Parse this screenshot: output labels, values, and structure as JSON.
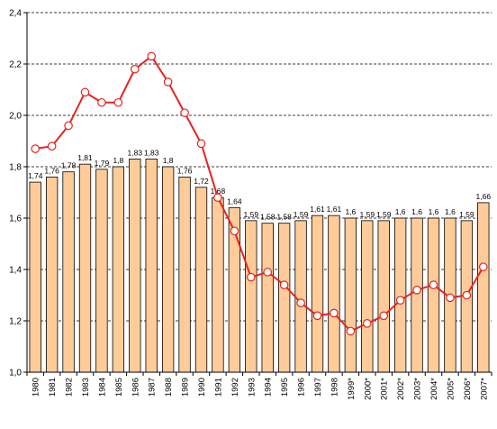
{
  "chart_data": {
    "type": "bar",
    "categories": [
      "1980",
      "1981",
      "1982",
      "1983",
      "1984",
      "1985",
      "1986",
      "1987",
      "1988",
      "1989",
      "1990",
      "1991",
      "1992",
      "1993",
      "1994",
      "1995",
      "1996",
      "1997",
      "1998",
      "1999*",
      "2000*",
      "2001*",
      "2002*",
      "2003*",
      "2004*",
      "2005*",
      "2006*",
      "2007*"
    ],
    "bar_values": [
      1.74,
      1.76,
      1.78,
      1.81,
      1.79,
      1.8,
      1.83,
      1.83,
      1.8,
      1.76,
      1.72,
      1.68,
      1.64,
      1.59,
      1.58,
      1.58,
      1.59,
      1.61,
      1.61,
      1.6,
      1.59,
      1.59,
      1.6,
      1.6,
      1.6,
      1.6,
      1.59,
      1.66
    ],
    "bar_labels": [
      "1,74",
      "1,76",
      "1,78",
      "1,81",
      "1,79",
      "1,8",
      "1,83",
      "1,83",
      "1,8",
      "1,76",
      "1,72",
      "1,68",
      "1,64",
      "1,59",
      "1,58",
      "1,58",
      "1,59",
      "1,61",
      "1,61",
      "1,6",
      "1,59",
      "1,59",
      "1,6",
      "1,6",
      "1,6",
      "1,6",
      "1,59",
      "1,66"
    ],
    "line_values": [
      1.87,
      1.88,
      1.96,
      2.09,
      2.05,
      2.05,
      2.18,
      2.23,
      2.13,
      2.01,
      1.89,
      1.68,
      1.55,
      1.37,
      1.39,
      1.34,
      1.27,
      1.22,
      1.23,
      1.16,
      1.19,
      1.22,
      1.28,
      1.32,
      1.34,
      1.29,
      1.3,
      1.41
    ],
    "ylim": [
      1.0,
      2.4
    ],
    "yticks": [
      "1,0",
      "1,2",
      "1,4",
      "1,6",
      "1,8",
      "2,0",
      "2,2",
      "2,4"
    ],
    "ytick_values": [
      1.0,
      1.2,
      1.4,
      1.6,
      1.8,
      2.0,
      2.2,
      2.4
    ],
    "grid": "horizontal dashed",
    "colors": {
      "bar_fill": "#FFCC99",
      "bar_stroke": "#000000",
      "line": "#E8231F",
      "marker_fill": "#FFFFFF"
    }
  }
}
